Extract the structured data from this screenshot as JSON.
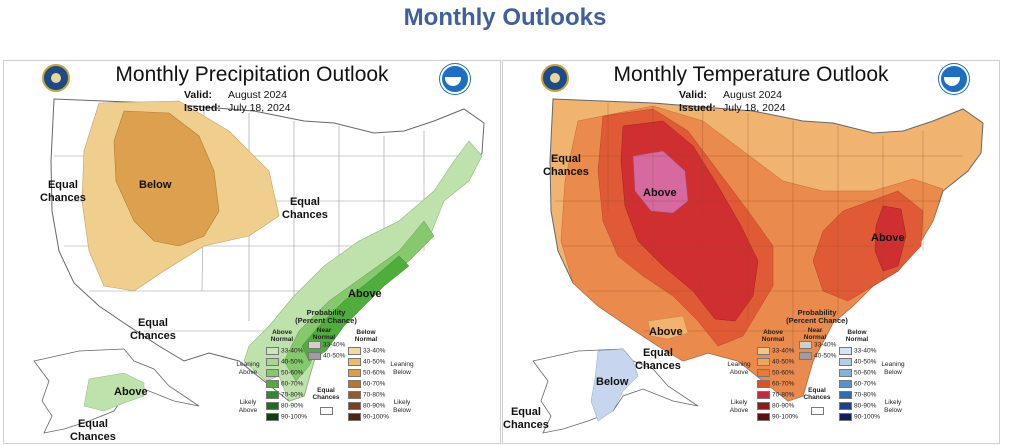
{
  "page": {
    "title": "Monthly Outlooks"
  },
  "precip": {
    "title": "Monthly Precipitation Outlook",
    "valid_label": "Valid:",
    "valid_value": "August 2024",
    "issued_label": "Issued:",
    "issued_value": "July 18, 2024",
    "labels": {
      "equal_west": "Equal\nChances",
      "below": "Below",
      "equal_center": "Equal\nChances",
      "above": "Above",
      "equal_alaska": "Equal\nChances",
      "above_alaska": "Above",
      "equal_bottom": "Equal\nChances"
    },
    "legend": {
      "title": "Probability\n(Percent Chance)",
      "col_above": "Above\nNormal",
      "col_near": "Near\nNormal",
      "col_below": "Below\nNormal",
      "side_left_top": "Leaning\nAbove",
      "side_left_bottom": "Likely\nAbove",
      "side_right_top": "Leaning\nBelow",
      "side_right_bottom": "Likely\nBelow",
      "equal": "Equal\nChances",
      "rows": [
        "33-40%",
        "40-50%",
        "50-60%",
        "60-70%",
        "70-80%",
        "80-90%",
        "90-100%"
      ],
      "near_rows": [
        "33-40%",
        "40-50%"
      ],
      "above_colors": [
        "#c9e6bd",
        "#a6d68f",
        "#86c66c",
        "#57a83f",
        "#2f8a2a",
        "#1f6b1f",
        "#0e3f10"
      ],
      "near_colors": [
        "#cfcfcf",
        "#9d9d9d"
      ],
      "below_colors": [
        "#f2d9a5",
        "#e7bd6f",
        "#d7a04a",
        "#b8762f",
        "#9a5a28",
        "#7a3f1c",
        "#4e2711"
      ]
    },
    "colors": {
      "below_lean": "#f0cf8e",
      "below_core": "#dca04e",
      "above_lean": "#bfe2ad",
      "above_mid": "#86c86c",
      "above_core": "#4fae3b"
    }
  },
  "temp": {
    "title": "Monthly Temperature Outlook",
    "valid_label": "Valid:",
    "valid_value": "August 2024",
    "issued_label": "Issued:",
    "issued_value": "July 18, 2024",
    "labels": {
      "equal_west": "Equal\nChances",
      "above_west": "Above",
      "above_east": "Above",
      "above_alaska": "Above",
      "equal_alaska": "Equal\nChances",
      "below_alaska": "Below",
      "equal_bottom": "Equal\nChances"
    },
    "legend": {
      "title": "Probability\n(Percent Chance)",
      "col_above": "Above\nNormal",
      "col_near": "Near\nNormal",
      "col_below": "Below\nNormal",
      "side_left_top": "Leaning\nAbove",
      "side_left_bottom": "Likely\nAbove",
      "side_right_top": "Leaning\nBelow",
      "side_right_bottom": "Likely\nBelow",
      "equal": "Equal\nChances",
      "rows": [
        "33-40%",
        "40-50%",
        "50-60%",
        "60-70%",
        "70-80%",
        "80-90%",
        "90-100%"
      ],
      "near_rows": [
        "33-40%",
        "40-50%"
      ],
      "above_colors": [
        "#f3c58c",
        "#eea55f",
        "#e7793d",
        "#dd4f2b",
        "#c8283c",
        "#8e1a1a",
        "#5c0f0f"
      ],
      "near_colors": [
        "#cfcfcf",
        "#9d9d9d"
      ],
      "below_colors": [
        "#d5e3f3",
        "#b3cce8",
        "#86b1dd",
        "#5a8fcc",
        "#2f6bb5",
        "#1f3f8e",
        "#151e5c"
      ]
    },
    "colors": {
      "lean": "#f1b370",
      "mid": "#ea8a4c",
      "high": "#e05a36",
      "core": "#cf2f30",
      "peak": "#d66aa0",
      "alaska_below": "#c7d6ee",
      "alaska_above": "#f1b370"
    }
  }
}
